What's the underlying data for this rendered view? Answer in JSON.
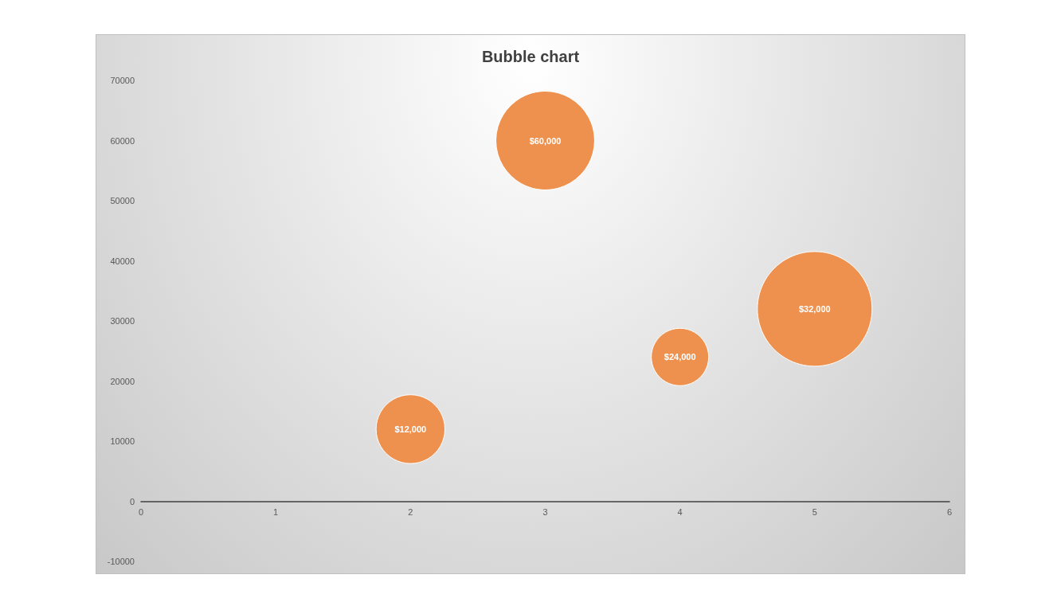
{
  "chart_data": {
    "type": "bubble",
    "title": "Bubble chart",
    "x": [
      2,
      3,
      4,
      5
    ],
    "values": [
      12000,
      60000,
      24000,
      32000
    ],
    "sizes": [
      0.36,
      0.74,
      0.25,
      1
    ],
    "value_labels": [
      "$12,000",
      "$60,000",
      "$24,000",
      "$32,000"
    ],
    "color": "#ee914e",
    "xlim": [
      0,
      6
    ],
    "xticks": [
      0,
      1,
      2,
      3,
      4,
      5,
      6
    ],
    "ylim": [
      -10000,
      70000
    ],
    "yticks": [
      -10000,
      0,
      10000,
      20000,
      30000,
      40000,
      50000,
      60000,
      70000
    ]
  }
}
